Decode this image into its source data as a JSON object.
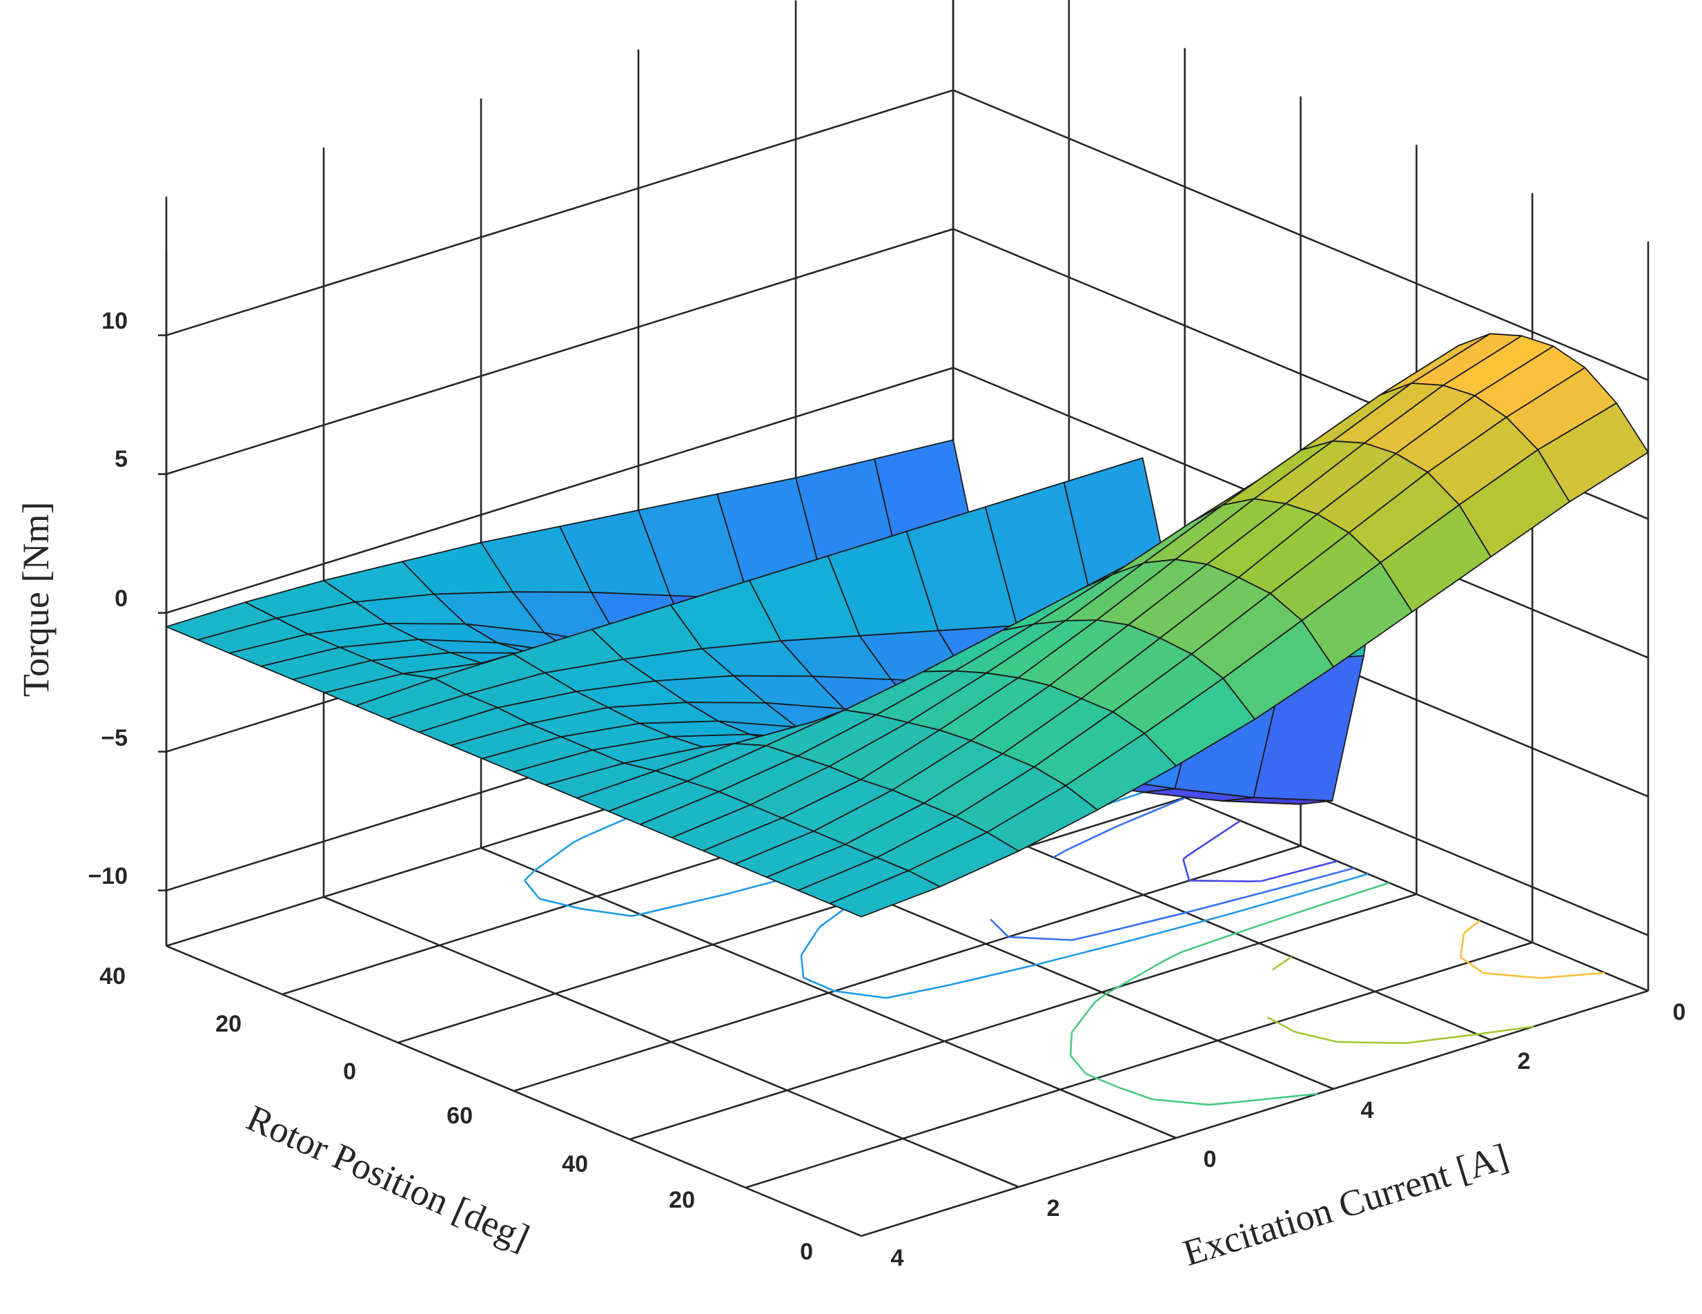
{
  "chart_data": {
    "type": "surface",
    "plot": "3-D surface with contour lines on the base",
    "xlabel": "Excitation Current [A]",
    "ylabel": "Rotor Position [deg]",
    "zlabel": "Torque [Nm]",
    "excitation_current_ticks": [
      "0",
      "2",
      "4",
      "0",
      "2",
      "4"
    ],
    "rotor_position_ticks": [
      "0",
      "20",
      "40",
      "60",
      "0",
      "20",
      "40"
    ],
    "torque_ticks": [
      "10",
      "5",
      "0",
      "−5",
      "−10"
    ],
    "zlim": [
      -12,
      12
    ],
    "colormap": "parula",
    "grid": true,
    "rotor_position_deg": [
      0,
      5,
      10,
      15,
      20,
      25,
      30,
      35,
      40,
      45,
      50,
      55,
      60,
      65,
      70,
      75,
      80,
      85,
      90,
      95,
      100,
      105,
      110
    ],
    "excitation_current_A": [
      0,
      1,
      2,
      3,
      4,
      5,
      6,
      7,
      8,
      9,
      10
    ],
    "torque_Nm": [
      [
        -0.5,
        -0.3,
        0.1,
        0.7,
        1.4,
        2.2,
        3.2,
        4.3,
        5.4,
        6.5,
        7.4
      ],
      [
        -0.5,
        -0.2,
        0.3,
        1.1,
        2.1,
        3.2,
        4.4,
        5.6,
        6.8,
        7.9,
        8.7
      ],
      [
        -0.5,
        -0.2,
        0.4,
        1.3,
        2.4,
        3.6,
        4.9,
        6.2,
        7.5,
        8.6,
        9.5
      ],
      [
        -0.5,
        -0.2,
        0.4,
        1.3,
        2.4,
        3.7,
        5.0,
        6.4,
        7.7,
        8.9,
        9.8
      ],
      [
        -0.5,
        -0.2,
        0.4,
        1.3,
        2.4,
        3.7,
        5.0,
        6.3,
        7.6,
        8.8,
        9.7
      ],
      [
        -0.5,
        -0.2,
        0.3,
        1.2,
        2.2,
        3.4,
        4.7,
        6.0,
        7.2,
        8.4,
        9.3
      ],
      [
        -0.5,
        -0.2,
        0.3,
        1.0,
        1.9,
        2.9,
        4.1,
        5.3,
        6.4,
        7.5,
        8.4
      ],
      [
        -0.5,
        -0.2,
        0.2,
        0.8,
        1.5,
        2.3,
        3.2,
        4.2,
        5.1,
        6.0,
        6.8
      ],
      [
        -0.5,
        -0.3,
        0.1,
        0.5,
        1.0,
        1.6,
        2.2,
        2.8,
        3.5,
        4.2,
        4.8
      ],
      [
        -0.5,
        -0.4,
        -0.3,
        -0.4,
        -0.6,
        -1.0,
        -1.5,
        -2.1,
        -2.8,
        -3.5,
        -4.2
      ],
      [
        -0.5,
        -0.6,
        -0.9,
        -1.6,
        -2.6,
        -3.8,
        -5.1,
        -6.4,
        -7.7,
        -8.9,
        -9.9
      ],
      [
        -0.5,
        -0.6,
        -1.0,
        -1.8,
        -2.9,
        -4.2,
        -5.6,
        -7.0,
        -8.3,
        -9.5,
        -10.5
      ],
      [
        -0.5,
        -0.6,
        -1.0,
        -1.8,
        -2.9,
        -4.1,
        -5.4,
        -6.7,
        -8.0,
        -9.1,
        -10.0
      ],
      [
        -0.5,
        -0.6,
        -0.9,
        -1.6,
        -2.5,
        -3.6,
        -4.8,
        -6.0,
        -7.1,
        -8.1,
        -8.9
      ],
      [
        -0.5,
        -0.5,
        -0.8,
        -1.3,
        -2.0,
        -2.9,
        -3.9,
        -4.9,
        -5.8,
        -6.6,
        -7.3
      ],
      [
        -0.5,
        -0.5,
        -0.6,
        -1.0,
        -1.5,
        -2.1,
        -2.8,
        -3.5,
        -4.2,
        -4.8,
        -5.3
      ],
      [
        -0.5,
        -0.4,
        -0.4,
        -0.4,
        -0.4,
        -0.4,
        -0.4,
        -0.4,
        -0.4,
        -0.4,
        -0.4
      ],
      [
        -0.5,
        -0.7,
        -1.2,
        -2.0,
        -3.1,
        -4.3,
        -5.6,
        -6.9,
        -8.1,
        -9.2,
        -10.1
      ],
      [
        -0.5,
        -0.7,
        -1.3,
        -2.2,
        -3.4,
        -4.8,
        -6.3,
        -7.8,
        -9.2,
        -10.4,
        -11.4
      ],
      [
        -0.5,
        -0.7,
        -1.3,
        -2.3,
        -3.6,
        -5.1,
        -6.7,
        -8.3,
        -9.8,
        -11.1,
        -12.1
      ],
      [
        -0.5,
        -0.7,
        -1.2,
        -2.1,
        -3.3,
        -4.7,
        -6.2,
        -7.6,
        -8.9,
        -10.0,
        -10.8
      ],
      [
        -0.5,
        -0.6,
        -0.9,
        -1.5,
        -2.3,
        -3.2,
        -4.2,
        -5.2,
        -6.1,
        -6.9,
        -7.5
      ],
      [
        -0.5,
        -0.5,
        -0.6,
        -0.8,
        -1.0,
        -1.3,
        -1.6,
        -1.9,
        -2.2,
        -2.4,
        -2.6
      ]
    ]
  }
}
